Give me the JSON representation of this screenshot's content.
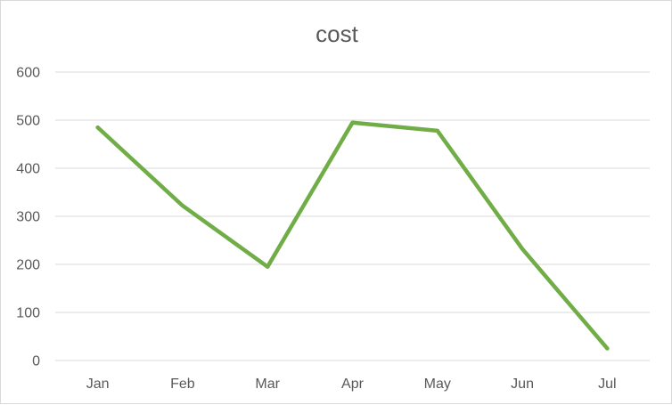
{
  "chart_data": {
    "type": "line",
    "title": "cost",
    "xlabel": "",
    "ylabel": "",
    "categories": [
      "Jan",
      "Feb",
      "Mar",
      "Apr",
      "May",
      "Jun",
      "Jul"
    ],
    "series": [
      {
        "values": [
          485,
          322,
          195,
          495,
          478,
          232,
          25
        ],
        "color": "#70ad47"
      }
    ],
    "ylim": [
      0,
      600
    ],
    "yticks": [
      0,
      100,
      200,
      300,
      400,
      500,
      600
    ],
    "grid": true,
    "legend": "none"
  }
}
